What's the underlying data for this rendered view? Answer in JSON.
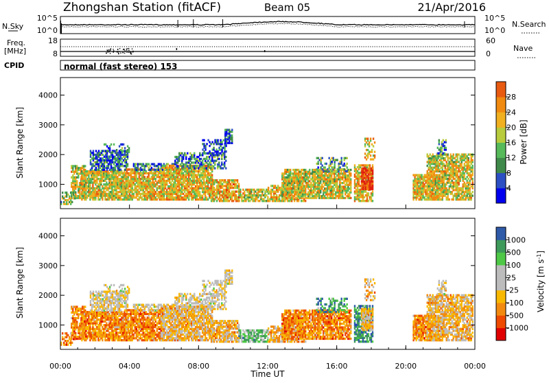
{
  "header": {
    "title": "Zhongshan Station (fitACF)",
    "beam": "Beam 05",
    "date": "21/Apr/2016"
  },
  "noise_panel": {
    "left_label": "N.Sky",
    "right_label": "N.Search",
    "left_ticks": [
      "10^5",
      "10^0"
    ],
    "right_ticks": [
      "10^5",
      "10^0"
    ]
  },
  "freq_panel": {
    "left_label_line1": "Freq.",
    "left_label_line2": "[MHz]",
    "right_label": "Nave",
    "left_ticks": [
      "18",
      "8"
    ],
    "right_ticks": [
      "60",
      "0"
    ]
  },
  "cpid": {
    "label": "CPID",
    "value": "normal (fast stereo) 153"
  },
  "colorbars": {
    "power": {
      "label": "Power [dB]",
      "ticks": [
        "4",
        "8",
        "12",
        "16",
        "20",
        "24",
        "28"
      ],
      "colors": [
        "#0000ee",
        "#2c4fc4",
        "#3f8a4a",
        "#56b95a",
        "#b7cb3c",
        "#f0b020",
        "#f08a10",
        "#e85a10",
        "#e02010"
      ]
    },
    "velocity": {
      "label": "Velocity [m s^-1]",
      "ticks": [
        "-1000",
        "-500",
        "-100",
        "-25",
        "25",
        "100",
        "500",
        "1000"
      ],
      "colors": [
        "#e00000",
        "#ee4a00",
        "#f28a10",
        "#f8b800",
        "#bcbcbc",
        "#bcbcbc",
        "#4ec846",
        "#3e9a5a",
        "#2e5aa8",
        "#2040b8"
      ]
    }
  },
  "chart_data": [
    {
      "type": "heatmap",
      "name": "Power",
      "ylabel": "Slant Range [km]",
      "xlabel": "",
      "ylim": [
        180,
        4590
      ],
      "yticks": [
        1000,
        2000,
        3000,
        4000
      ],
      "xlim": [
        0,
        24
      ],
      "x_ticks": [
        "00:00",
        "04:00",
        "08:00",
        "12:00",
        "16:00",
        "20:00",
        "00:00"
      ],
      "clim_db": [
        0,
        32
      ]
    },
    {
      "type": "heatmap",
      "name": "Velocity",
      "ylabel": "Slant Range [km]",
      "xlabel": "Time UT",
      "ylim": [
        180,
        4590
      ],
      "yticks": [
        1000,
        2000,
        3000,
        4000
      ],
      "xlim": [
        0,
        24
      ],
      "x_ticks": [
        "00:00",
        "04:00",
        "08:00",
        "12:00",
        "16:00",
        "20:00",
        "00:00"
      ],
      "clim_ms": [
        -1200,
        1200
      ]
    }
  ],
  "x_axis_label": "Time UT"
}
